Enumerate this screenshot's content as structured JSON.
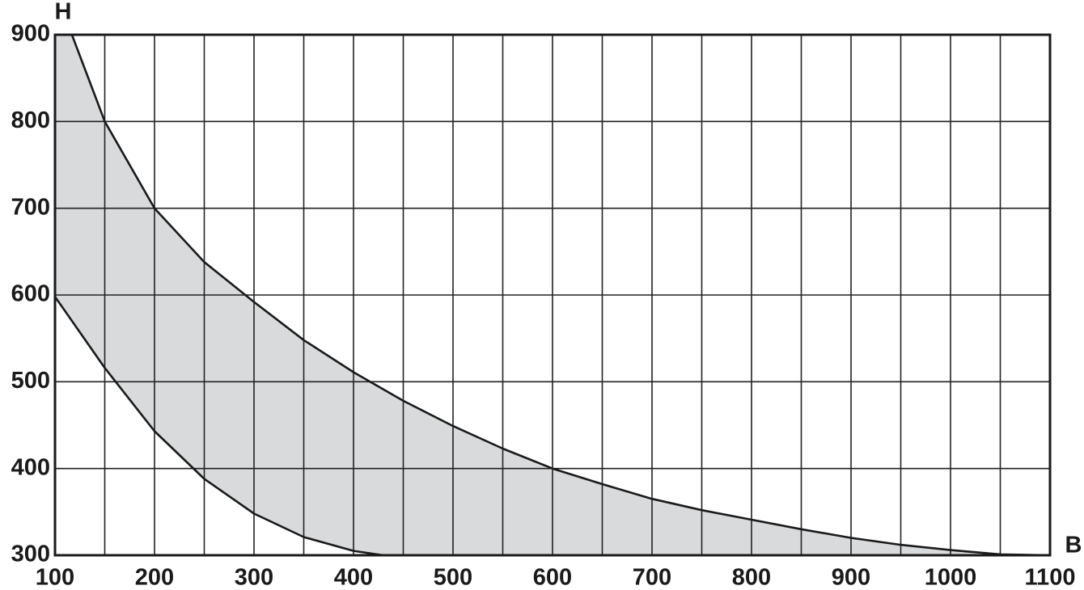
{
  "chart_data": {
    "type": "area-band",
    "x_label": "B",
    "y_label": "H",
    "xlim": [
      100,
      1100
    ],
    "ylim": [
      300,
      900
    ],
    "xticks": [
      100,
      200,
      300,
      400,
      500,
      600,
      700,
      800,
      900,
      1000,
      1100
    ],
    "x_minor_grid": [
      150,
      250,
      350,
      450,
      550,
      650,
      750,
      850,
      950,
      1050
    ],
    "yticks": [
      300,
      400,
      500,
      600,
      700,
      800,
      900
    ],
    "grid": true,
    "fill_color": "#d9dadc",
    "series": [
      {
        "color": "#1a1a1a",
        "x": [
          117,
          150,
          200,
          250,
          300,
          350,
          400,
          450,
          500,
          550,
          600,
          650,
          700,
          750,
          800,
          850,
          900,
          950,
          1000,
          1050,
          1100
        ],
        "values": [
          900,
          800,
          700,
          638,
          592,
          548,
          511,
          478,
          449,
          423,
          400,
          382,
          365,
          352,
          341,
          330,
          320,
          312,
          306,
          301,
          300
        ]
      },
      {
        "color": "#1a1a1a",
        "x": [
          100,
          150,
          200,
          250,
          300,
          350,
          400,
          430,
          450
        ],
        "values": [
          598,
          516,
          443,
          388,
          348,
          321,
          305,
          300,
          300
        ]
      }
    ]
  }
}
